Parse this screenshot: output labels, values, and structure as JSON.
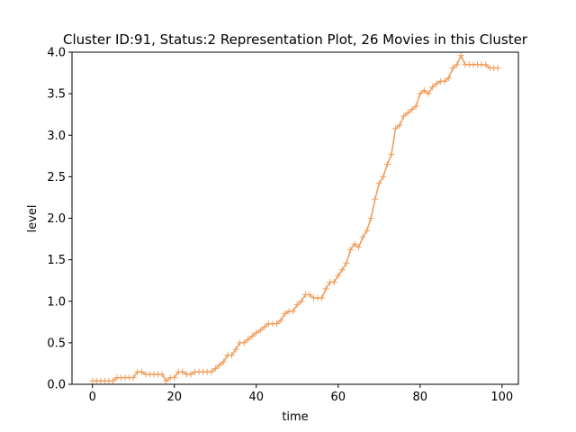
{
  "chart_data": {
    "type": "line",
    "title": "Cluster ID:91, Status:2 Representation Plot, 26 Movies in this Cluster",
    "xlabel": "time",
    "ylabel": "level",
    "xlim": [
      -5,
      104
    ],
    "ylim": [
      0,
      4.0
    ],
    "xticks": [
      0,
      20,
      40,
      60,
      80,
      100
    ],
    "yticks": [
      0.0,
      0.5,
      1.0,
      1.5,
      2.0,
      2.5,
      3.0,
      3.5,
      4.0
    ],
    "grid": false,
    "series": [
      {
        "color": "#f0a060",
        "marker": "plus",
        "x": [
          0,
          1,
          2,
          3,
          4,
          5,
          6,
          7,
          8,
          9,
          10,
          11,
          12,
          13,
          14,
          15,
          16,
          17,
          18,
          19,
          20,
          21,
          22,
          23,
          24,
          25,
          26,
          27,
          28,
          29,
          30,
          31,
          32,
          33,
          34,
          35,
          36,
          37,
          38,
          39,
          40,
          41,
          42,
          43,
          44,
          45,
          46,
          47,
          48,
          49,
          50,
          51,
          52,
          53,
          54,
          55,
          56,
          57,
          58,
          59,
          60,
          61,
          62,
          63,
          64,
          65,
          66,
          67,
          68,
          69,
          70,
          71,
          72,
          73,
          74,
          75,
          76,
          77,
          78,
          79,
          80,
          81,
          82,
          83,
          84,
          85,
          86,
          87,
          88,
          89,
          90,
          91,
          92,
          93,
          94,
          95,
          96,
          97,
          98,
          99
        ],
        "values": [
          0.04,
          0.04,
          0.04,
          0.04,
          0.04,
          0.04,
          0.08,
          0.08,
          0.08,
          0.08,
          0.08,
          0.15,
          0.15,
          0.12,
          0.12,
          0.12,
          0.12,
          0.12,
          0.04,
          0.08,
          0.08,
          0.15,
          0.15,
          0.12,
          0.12,
          0.15,
          0.15,
          0.15,
          0.15,
          0.15,
          0.19,
          0.23,
          0.27,
          0.35,
          0.35,
          0.42,
          0.5,
          0.5,
          0.54,
          0.58,
          0.62,
          0.65,
          0.69,
          0.73,
          0.73,
          0.73,
          0.77,
          0.85,
          0.88,
          0.88,
          0.96,
          1.0,
          1.08,
          1.08,
          1.04,
          1.04,
          1.04,
          1.15,
          1.23,
          1.23,
          1.31,
          1.38,
          1.46,
          1.62,
          1.69,
          1.65,
          1.77,
          1.85,
          2.0,
          2.23,
          2.42,
          2.5,
          2.65,
          2.77,
          3.08,
          3.12,
          3.23,
          3.27,
          3.31,
          3.35,
          3.5,
          3.54,
          3.5,
          3.58,
          3.62,
          3.65,
          3.65,
          3.69,
          3.81,
          3.85,
          3.96,
          3.85,
          3.85,
          3.85,
          3.85,
          3.85,
          3.85,
          3.81,
          3.81,
          3.81
        ]
      }
    ]
  }
}
